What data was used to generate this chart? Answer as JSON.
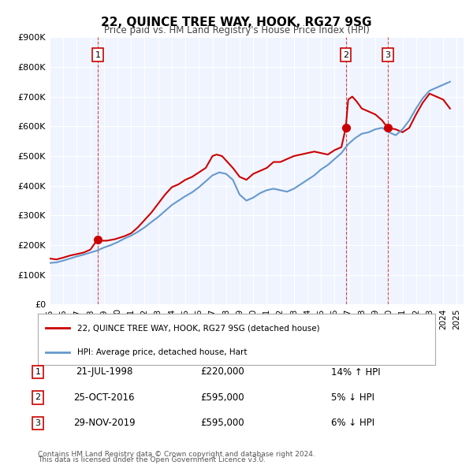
{
  "title": "22, QUINCE TREE WAY, HOOK, RG27 9SG",
  "subtitle": "Price paid vs. HM Land Registry's House Price Index (HPI)",
  "legend_line1": "22, QUINCE TREE WAY, HOOK, RG27 9SG (detached house)",
  "legend_line2": "HPI: Average price, detached house, Hart",
  "red_color": "#cc0000",
  "blue_color": "#6699cc",
  "background_color": "#f0f4ff",
  "plot_bg_color": "#f0f4ff",
  "ylim": [
    0,
    900000
  ],
  "yticks": [
    0,
    100000,
    200000,
    300000,
    400000,
    500000,
    600000,
    700000,
    800000,
    900000
  ],
  "ytick_labels": [
    "£0",
    "£100K",
    "£200K",
    "£300K",
    "£400K",
    "£500K",
    "£600K",
    "£700K",
    "£800K",
    "£900K"
  ],
  "xlim_start": 1995.0,
  "xlim_end": 2025.5,
  "xticks": [
    1995,
    1996,
    1997,
    1998,
    1999,
    2000,
    2001,
    2002,
    2003,
    2004,
    2005,
    2006,
    2007,
    2008,
    2009,
    2010,
    2011,
    2012,
    2013,
    2014,
    2015,
    2016,
    2017,
    2018,
    2019,
    2020,
    2021,
    2022,
    2023,
    2024,
    2025
  ],
  "transactions": [
    {
      "num": 1,
      "date": "21-JUL-1998",
      "year": 1998.54,
      "price": 220000,
      "pct": "14%",
      "dir": "↑"
    },
    {
      "num": 2,
      "date": "25-OCT-2016",
      "year": 2016.82,
      "price": 595000,
      "pct": "5%",
      "dir": "↓"
    },
    {
      "num": 3,
      "date": "29-NOV-2019",
      "year": 2019.91,
      "price": 595000,
      "pct": "6%",
      "dir": "↓"
    }
  ],
  "footer_line1": "Contains HM Land Registry data © Crown copyright and database right 2024.",
  "footer_line2": "This data is licensed under the Open Government Licence v3.0.",
  "red_line_x": [
    1995.0,
    1995.5,
    1996.0,
    1996.5,
    1997.0,
    1997.5,
    1998.0,
    1998.54,
    1998.8,
    1999.2,
    1999.8,
    2000.5,
    2001.0,
    2001.5,
    2002.0,
    2002.5,
    2003.0,
    2003.5,
    2004.0,
    2004.5,
    2005.0,
    2005.5,
    2006.0,
    2006.5,
    2007.0,
    2007.3,
    2007.7,
    2008.0,
    2008.5,
    2009.0,
    2009.5,
    2010.0,
    2010.5,
    2011.0,
    2011.5,
    2012.0,
    2012.5,
    2013.0,
    2013.5,
    2014.0,
    2014.5,
    2015.0,
    2015.5,
    2016.0,
    2016.5,
    2016.82,
    2017.0,
    2017.3,
    2017.6,
    2018.0,
    2018.5,
    2019.0,
    2019.5,
    2019.91,
    2020.5,
    2021.0,
    2021.5,
    2022.0,
    2022.5,
    2023.0,
    2023.5,
    2024.0,
    2024.5
  ],
  "red_line_y": [
    155000,
    152000,
    158000,
    165000,
    170000,
    175000,
    185000,
    220000,
    215000,
    215000,
    220000,
    230000,
    240000,
    260000,
    285000,
    310000,
    340000,
    370000,
    395000,
    405000,
    420000,
    430000,
    445000,
    460000,
    500000,
    505000,
    500000,
    485000,
    460000,
    430000,
    420000,
    440000,
    450000,
    460000,
    480000,
    480000,
    490000,
    500000,
    505000,
    510000,
    515000,
    510000,
    505000,
    520000,
    530000,
    595000,
    690000,
    700000,
    685000,
    660000,
    650000,
    640000,
    620000,
    595000,
    590000,
    580000,
    595000,
    640000,
    680000,
    710000,
    700000,
    690000,
    660000
  ],
  "blue_line_x": [
    1995.0,
    1995.5,
    1996.0,
    1996.5,
    1997.0,
    1997.5,
    1998.0,
    1998.5,
    1999.0,
    1999.5,
    2000.0,
    2000.5,
    2001.0,
    2001.5,
    2002.0,
    2002.5,
    2003.0,
    2003.5,
    2004.0,
    2004.5,
    2005.0,
    2005.5,
    2006.0,
    2006.5,
    2007.0,
    2007.5,
    2008.0,
    2008.5,
    2009.0,
    2009.5,
    2010.0,
    2010.5,
    2011.0,
    2011.5,
    2012.0,
    2012.5,
    2013.0,
    2013.5,
    2014.0,
    2014.5,
    2015.0,
    2015.5,
    2016.0,
    2016.5,
    2017.0,
    2017.5,
    2018.0,
    2018.5,
    2019.0,
    2019.5,
    2020.0,
    2020.5,
    2021.0,
    2021.5,
    2022.0,
    2022.5,
    2023.0,
    2023.5,
    2024.0,
    2024.5
  ],
  "blue_line_y": [
    140000,
    142000,
    148000,
    155000,
    162000,
    168000,
    175000,
    182000,
    192000,
    200000,
    210000,
    222000,
    232000,
    245000,
    260000,
    278000,
    295000,
    315000,
    335000,
    350000,
    365000,
    378000,
    395000,
    415000,
    435000,
    445000,
    440000,
    420000,
    370000,
    350000,
    360000,
    375000,
    385000,
    390000,
    385000,
    380000,
    390000,
    405000,
    420000,
    435000,
    455000,
    470000,
    490000,
    510000,
    540000,
    560000,
    575000,
    580000,
    590000,
    595000,
    580000,
    570000,
    590000,
    620000,
    660000,
    695000,
    720000,
    730000,
    740000,
    750000
  ]
}
